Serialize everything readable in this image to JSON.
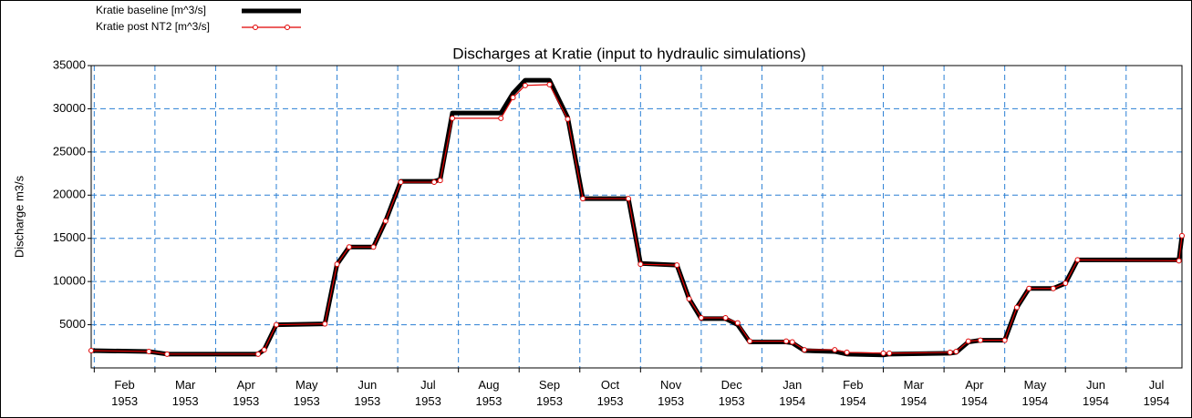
{
  "chart_data": {
    "type": "line",
    "title": "Discharges at Kratie (input to hydraulic simulations)",
    "y_label": "Discharge m3/s",
    "x": [
      -0.05,
      0.9,
      1.2,
      2.7,
      2.8,
      3.0,
      3.8,
      4.0,
      4.2,
      4.6,
      4.8,
      5.05,
      5.6,
      5.7,
      5.9,
      6.7,
      6.9,
      7.1,
      7.5,
      7.8,
      8.05,
      8.8,
      9.0,
      9.6,
      9.8,
      10.0,
      10.4,
      10.6,
      10.8,
      11.4,
      11.5,
      11.7,
      12.2,
      12.4,
      13.0,
      13.1,
      14.1,
      14.2,
      14.4,
      14.6,
      15.0,
      15.2,
      15.4,
      15.8,
      16.0,
      16.2,
      17.87,
      17.92
    ],
    "series": [
      {
        "name": "Kratie baseline  [m^3/s]",
        "color": "#000000",
        "values": [
          2000,
          1900,
          1600,
          1600,
          2100,
          5000,
          5100,
          12000,
          14000,
          14000,
          17000,
          21600,
          21600,
          21800,
          29500,
          29500,
          31800,
          33300,
          33300,
          29000,
          19600,
          19600,
          12100,
          11900,
          8000,
          5700,
          5700,
          5000,
          3000,
          3000,
          2900,
          2000,
          1900,
          1600,
          1500,
          1600,
          1700,
          1800,
          3000,
          3200,
          3200,
          7000,
          9200,
          9200,
          9800,
          12500,
          12500,
          15300
        ]
      },
      {
        "name": "Kratie post NT2  [m^3/s]",
        "color": "#e00000",
        "values": [
          2000,
          1900,
          1600,
          1600,
          2100,
          5000,
          5100,
          12000,
          14000,
          14000,
          17000,
          21500,
          21500,
          21700,
          28900,
          28900,
          31300,
          32700,
          32800,
          28800,
          19600,
          19600,
          12000,
          11900,
          8000,
          5800,
          5800,
          5200,
          3100,
          3100,
          3000,
          2100,
          2100,
          1800,
          1700,
          1700,
          1800,
          1900,
          3100,
          3200,
          3200,
          7000,
          9200,
          9200,
          9800,
          12500,
          12400,
          15300
        ]
      }
    ],
    "xlim": [
      -0.05,
      17.92
    ],
    "xticks": [
      {
        "value": 0,
        "label": "Feb 1953"
      },
      {
        "value": 1,
        "label": "Mar 1953"
      },
      {
        "value": 2,
        "label": "Apr 1953"
      },
      {
        "value": 3,
        "label": "May 1953"
      },
      {
        "value": 4,
        "label": "Jun 1953"
      },
      {
        "value": 5,
        "label": "Jul 1953"
      },
      {
        "value": 6,
        "label": "Aug 1953"
      },
      {
        "value": 7,
        "label": "Sep 1953"
      },
      {
        "value": 8,
        "label": "Oct 1953"
      },
      {
        "value": 9,
        "label": "Nov 1953"
      },
      {
        "value": 10,
        "label": "Dec 1953"
      },
      {
        "value": 11,
        "label": "Jan 1954"
      },
      {
        "value": 12,
        "label": "Feb 1954"
      },
      {
        "value": 13,
        "label": "Mar 1954"
      },
      {
        "value": 14,
        "label": "Apr 1954"
      },
      {
        "value": 15,
        "label": "May 1954"
      },
      {
        "value": 16,
        "label": "Jun 1954"
      },
      {
        "value": 17,
        "label": "Jul 1954"
      }
    ],
    "ylim": [
      0,
      35000
    ],
    "yticks": [
      5000,
      10000,
      15000,
      20000,
      25000,
      30000,
      35000
    ],
    "grid": true,
    "legend": "top-left"
  }
}
